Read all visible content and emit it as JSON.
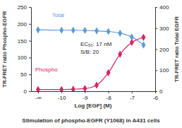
{
  "chart_data": {
    "type": "line",
    "title": "Stimulation of phospho-EGFR (Y1068) in A431 cells",
    "x_label": "Log [EGF] (M)",
    "y_label": "TR-FRET ratio Phospho-EGFR",
    "y2_label": "TR-FRET ratio Total EGFR",
    "annotations": [
      "Total",
      "Phospho",
      "EC₅₀: 17 nM",
      "S/B: 20"
    ],
    "x": [
      -11,
      -10,
      -9.5,
      -9,
      -8.5,
      -8,
      -7.5,
      -7,
      -6.5
    ],
    "xlim": [
      -11.3,
      -6
    ],
    "xticks": [
      {
        "value": -11,
        "label": "-∞"
      },
      -10,
      -9,
      -8,
      -7,
      -6
    ],
    "ylim": [
      0,
      250
    ],
    "yticks": [
      0,
      50,
      100,
      150,
      200,
      250
    ],
    "y2lim": [
      0,
      400
    ],
    "y2ticks": [
      0,
      100,
      200,
      300,
      400
    ],
    "series": [
      {
        "name": "Total",
        "color": "#5b9bd5",
        "axis": "y2",
        "marker": "diamond",
        "line_style": "solid",
        "values": [
          292,
          290,
          290,
          289,
          287,
          284,
          276,
          258,
          220
        ]
      },
      {
        "name": "Phospho",
        "color": "#d6245e",
        "marker": "diamond",
        "line_style": "solid",
        "values": [
          5,
          5,
          6,
          8,
          18,
          55,
          110,
          145,
          160
        ]
      }
    ]
  }
}
